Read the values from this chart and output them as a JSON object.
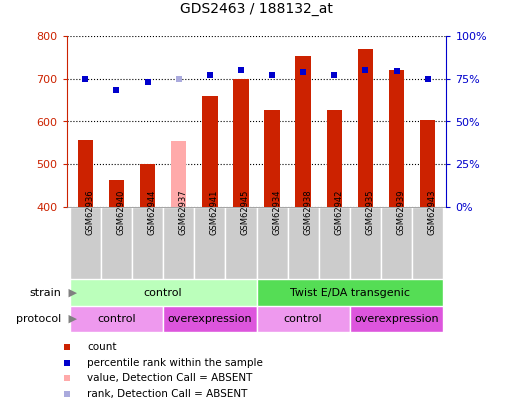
{
  "title": "GDS2463 / 188132_at",
  "samples": [
    "GSM62936",
    "GSM62940",
    "GSM62944",
    "GSM62937",
    "GSM62941",
    "GSM62945",
    "GSM62934",
    "GSM62938",
    "GSM62942",
    "GSM62935",
    "GSM62939",
    "GSM62943"
  ],
  "bar_values": [
    556,
    463,
    500,
    null,
    660,
    700,
    628,
    754,
    626,
    770,
    722,
    603
  ],
  "bar_absent_values": [
    null,
    null,
    null,
    553,
    null,
    null,
    null,
    null,
    null,
    null,
    null,
    null
  ],
  "bar_color_normal": "#cc2200",
  "bar_color_absent": "#ffaaaa",
  "dot_values": [
    700,
    673,
    693,
    null,
    710,
    720,
    710,
    716,
    710,
    720,
    718,
    700
  ],
  "dot_absent_values": [
    null,
    null,
    null,
    700,
    null,
    null,
    null,
    null,
    null,
    null,
    null,
    null
  ],
  "dot_color_normal": "#0000cc",
  "dot_color_absent": "#aaaadd",
  "ylim_left": [
    400,
    800
  ],
  "ylim_right": [
    0,
    100
  ],
  "yticks_left": [
    400,
    500,
    600,
    700,
    800
  ],
  "yticks_right": [
    0,
    25,
    50,
    75,
    100
  ],
  "ytick_labels_right": [
    "0%",
    "25%",
    "50%",
    "75%",
    "100%"
  ],
  "strain_groups": [
    {
      "label": "control",
      "start": 0,
      "end": 6,
      "color": "#bbffbb"
    },
    {
      "label": "Twist E/DA transgenic",
      "start": 6,
      "end": 12,
      "color": "#55dd55"
    }
  ],
  "protocol_groups": [
    {
      "label": "control",
      "start": 0,
      "end": 3,
      "color": "#ee99ee"
    },
    {
      "label": "overexpression",
      "start": 3,
      "end": 6,
      "color": "#dd55dd"
    },
    {
      "label": "control",
      "start": 6,
      "end": 9,
      "color": "#ee99ee"
    },
    {
      "label": "overexpression",
      "start": 9,
      "end": 12,
      "color": "#dd55dd"
    }
  ],
  "legend_items": [
    {
      "label": "count",
      "color": "#cc2200"
    },
    {
      "label": "percentile rank within the sample",
      "color": "#0000cc"
    },
    {
      "label": "value, Detection Call = ABSENT",
      "color": "#ffaaaa"
    },
    {
      "label": "rank, Detection Call = ABSENT",
      "color": "#aaaadd"
    }
  ],
  "sample_box_color": "#cccccc",
  "ylabel_left_color": "#cc2200",
  "ylabel_right_color": "#0000cc",
  "bar_width": 0.5
}
